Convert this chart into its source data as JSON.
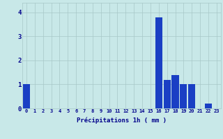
{
  "values": [
    1.0,
    0,
    0,
    0,
    0,
    0,
    0,
    0,
    0,
    0,
    0,
    0,
    0,
    0,
    0,
    0,
    3.8,
    1.2,
    1.4,
    1.0,
    1.0,
    0,
    0.2,
    0
  ],
  "hours": [
    0,
    1,
    2,
    3,
    4,
    5,
    6,
    7,
    8,
    9,
    10,
    11,
    12,
    13,
    14,
    15,
    16,
    17,
    18,
    19,
    20,
    21,
    22,
    23
  ],
  "bar_color": "#1a3fc4",
  "background_color": "#c8e8e8",
  "grid_color": "#a8c8c8",
  "xlabel": "Précipitations 1h ( mm )",
  "xlabel_color": "#00008b",
  "tick_color": "#00008b",
  "ylim": [
    0,
    4.4
  ],
  "yticks": [
    0,
    1,
    2,
    3,
    4
  ]
}
